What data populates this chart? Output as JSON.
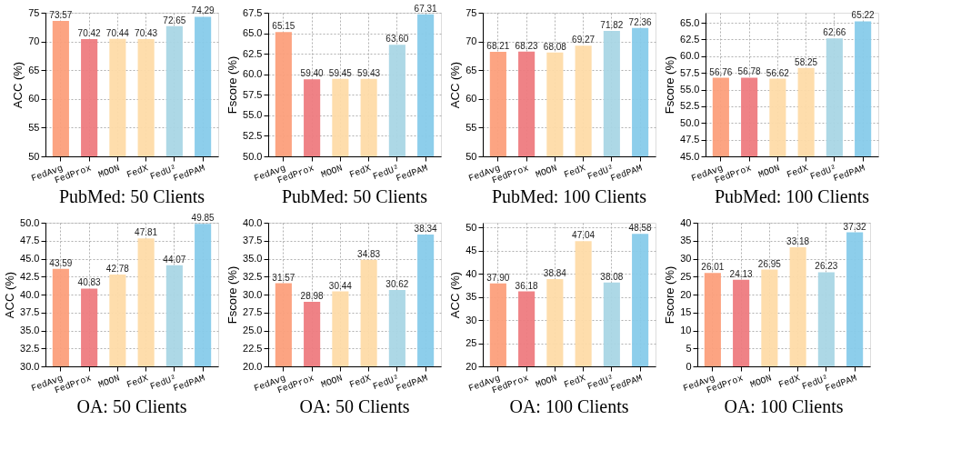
{
  "chart_data": [
    {
      "type": "bar",
      "title": "PubMed: 50 Clients",
      "ylabel": "ACC (%)",
      "categories": [
        "FedAvg",
        "FedProx",
        "MOON",
        "FedX",
        "FedU²",
        "FedPAM"
      ],
      "values": [
        73.57,
        70.42,
        70.44,
        70.43,
        72.65,
        74.29
      ],
      "value_labels": [
        "73.57",
        "70.42",
        "70.44",
        "70.43",
        "72.65",
        "74.29"
      ],
      "colors": [
        "#fc9f7b",
        "#ee7b80",
        "#fedba8",
        "#fedba8",
        "#a9d6e5",
        "#87cbea"
      ],
      "ylim": [
        50,
        75
      ],
      "yticks": [
        50,
        55,
        60,
        65,
        70,
        75
      ],
      "grid": true
    },
    {
      "type": "bar",
      "title": "PubMed: 50 Clients",
      "ylabel": "Fscore (%)",
      "categories": [
        "FedAvg",
        "FedProx",
        "MOON",
        "FedX",
        "FedU²",
        "FedPAM"
      ],
      "values": [
        65.15,
        59.4,
        59.45,
        59.43,
        63.6,
        67.31
      ],
      "value_labels": [
        "65.15",
        "59.40",
        "59.45",
        "59.43",
        "63.60",
        "67.31"
      ],
      "colors": [
        "#fc9f7b",
        "#ee7b80",
        "#fedba8",
        "#fedba8",
        "#a9d6e5",
        "#87cbea"
      ],
      "ylim": [
        50,
        67.5
      ],
      "yticks": [
        {
          "value": 50,
          "label": "50.0"
        },
        {
          "value": 52.5,
          "label": "52.5"
        },
        {
          "value": 55,
          "label": "55.0"
        },
        {
          "value": 57.5,
          "label": "57.5"
        },
        {
          "value": 60,
          "label": "60.0"
        },
        {
          "value": 62.5,
          "label": "62.5"
        },
        {
          "value": 65,
          "label": "65.0"
        },
        {
          "value": 67.5,
          "label": "67.5"
        }
      ],
      "grid": true
    },
    {
      "type": "bar",
      "title": "PubMed: 100 Clients",
      "ylabel": "ACC (%)",
      "categories": [
        "FedAvg",
        "FedProx",
        "MOON",
        "FedX",
        "FedU²",
        "FedPAM"
      ],
      "values": [
        68.21,
        68.23,
        68.08,
        69.27,
        71.82,
        72.36
      ],
      "value_labels": [
        "68.21",
        "68.23",
        "68.08",
        "69.27",
        "71.82",
        "72.36"
      ],
      "colors": [
        "#fc9f7b",
        "#ee7b80",
        "#fedba8",
        "#fedba8",
        "#a9d6e5",
        "#87cbea"
      ],
      "ylim": [
        50,
        75
      ],
      "yticks": [
        50,
        55,
        60,
        65,
        70,
        75
      ],
      "grid": true
    },
    {
      "type": "bar",
      "title": "PubMed: 100 Clients",
      "ylabel": "Fscore (%)",
      "categories": [
        "FedAvg",
        "FedProx",
        "MOON",
        "FedX",
        "FedU²",
        "FedPAM"
      ],
      "values": [
        56.76,
        56.78,
        56.62,
        58.25,
        62.66,
        65.22
      ],
      "value_labels": [
        "56.76",
        "56.78",
        "56.62",
        "58.25",
        "62.66",
        "65.22"
      ],
      "colors": [
        "#fc9f7b",
        "#ee7b80",
        "#fedba8",
        "#fedba8",
        "#a9d6e5",
        "#87cbea"
      ],
      "ylim": [
        45,
        66.5
      ],
      "yticks": [
        {
          "value": 45,
          "label": "45.0"
        },
        {
          "value": 47.5,
          "label": "47.5"
        },
        {
          "value": 50,
          "label": "50.0"
        },
        {
          "value": 52.5,
          "label": "52.5"
        },
        {
          "value": 55,
          "label": "55.0"
        },
        {
          "value": 57.5,
          "label": "57.5"
        },
        {
          "value": 60,
          "label": "60.0"
        },
        {
          "value": 62.5,
          "label": "62.5"
        },
        {
          "value": 65,
          "label": "65.0"
        }
      ],
      "grid": true
    },
    {
      "type": "bar",
      "title": "OA: 50 Clients",
      "ylabel": "ACC (%)",
      "categories": [
        "FedAvg",
        "FedProx",
        "MOON",
        "FedX",
        "FedU²",
        "FedPAM"
      ],
      "values": [
        43.59,
        40.83,
        42.78,
        47.81,
        44.07,
        49.85
      ],
      "value_labels": [
        "43.59",
        "40.83",
        "42.78",
        "47.81",
        "44.07",
        "49.85"
      ],
      "colors": [
        "#fc9f7b",
        "#ee7b80",
        "#fedba8",
        "#fedba8",
        "#a9d6e5",
        "#87cbea"
      ],
      "ylim": [
        30,
        50
      ],
      "yticks": [
        {
          "value": 30,
          "label": "30.0"
        },
        {
          "value": 32.5,
          "label": "32.5"
        },
        {
          "value": 35,
          "label": "35.0"
        },
        {
          "value": 37.5,
          "label": "37.5"
        },
        {
          "value": 40,
          "label": "40.0"
        },
        {
          "value": 42.5,
          "label": "42.5"
        },
        {
          "value": 45,
          "label": "45.0"
        },
        {
          "value": 47.5,
          "label": "47.5"
        },
        {
          "value": 50,
          "label": "50.0"
        }
      ],
      "grid": true
    },
    {
      "type": "bar",
      "title": "OA: 50 Clients",
      "ylabel": "Fscore (%)",
      "categories": [
        "FedAvg",
        "FedProx",
        "MOON",
        "FedX",
        "FedU²",
        "FedPAM"
      ],
      "values": [
        31.57,
        28.98,
        30.44,
        34.83,
        30.62,
        38.34
      ],
      "value_labels": [
        "31.57",
        "28.98",
        "30.44",
        "34.83",
        "30.62",
        "38.34"
      ],
      "colors": [
        "#fc9f7b",
        "#ee7b80",
        "#fedba8",
        "#fedba8",
        "#a9d6e5",
        "#87cbea"
      ],
      "ylim": [
        20,
        40
      ],
      "yticks": [
        {
          "value": 20,
          "label": "20.0"
        },
        {
          "value": 22.5,
          "label": "22.5"
        },
        {
          "value": 25,
          "label": "25.0"
        },
        {
          "value": 27.5,
          "label": "27.5"
        },
        {
          "value": 30,
          "label": "30.0"
        },
        {
          "value": 32.5,
          "label": "32.5"
        },
        {
          "value": 35,
          "label": "35.0"
        },
        {
          "value": 37.5,
          "label": "37.5"
        },
        {
          "value": 40,
          "label": "40.0"
        }
      ],
      "grid": true
    },
    {
      "type": "bar",
      "title": "OA: 100 Clients",
      "ylabel": "ACC (%)",
      "categories": [
        "FedAvg",
        "FedProx",
        "MOON",
        "FedX",
        "FedU²",
        "FedPAM"
      ],
      "values": [
        37.9,
        36.18,
        38.84,
        47.04,
        38.08,
        48.58
      ],
      "value_labels": [
        "37.90",
        "36.18",
        "38.84",
        "47.04",
        "38.08",
        "48.58"
      ],
      "colors": [
        "#fc9f7b",
        "#ee7b80",
        "#fedba8",
        "#fedba8",
        "#a9d6e5",
        "#87cbea"
      ],
      "ylim": [
        20,
        51
      ],
      "yticks": [
        20,
        25,
        30,
        35,
        40,
        45,
        50
      ],
      "grid": true
    },
    {
      "type": "bar",
      "title": "OA: 100 Clients",
      "ylabel": "Fscore (%)",
      "categories": [
        "FedAvg",
        "FedProx",
        "MOON",
        "FedX",
        "FedU²",
        "FedPAM"
      ],
      "values": [
        26.01,
        24.13,
        26.95,
        33.18,
        26.23,
        37.32
      ],
      "value_labels": [
        "26.01",
        "24.13",
        "26.95",
        "33.18",
        "26.23",
        "37.32"
      ],
      "colors": [
        "#fc9f7b",
        "#ee7b80",
        "#fedba8",
        "#fedba8",
        "#a9d6e5",
        "#87cbea"
      ],
      "ylim": [
        0,
        40
      ],
      "yticks": [
        0,
        5,
        10,
        15,
        20,
        25,
        30,
        35,
        40
      ],
      "grid": true
    }
  ]
}
